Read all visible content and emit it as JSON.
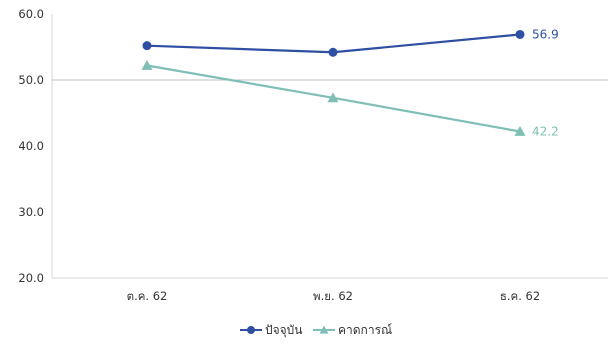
{
  "chart_data": {
    "type": "line",
    "categories": [
      "ต.ค. 62",
      "พ.ย. 62",
      "ธ.ค. 62"
    ],
    "series": [
      {
        "name": "ปัจจุบัน",
        "values": [
          55.2,
          54.2,
          56.9
        ],
        "color": "#2e4fa3",
        "marker": "circle",
        "label_last": "56.9"
      },
      {
        "name": "คาดการณ์",
        "values": [
          52.2,
          47.3,
          42.2
        ],
        "color": "#7fbfb6",
        "marker": "triangle",
        "label_last": "42.2"
      }
    ],
    "y_ticks": [
      "20.0",
      "30.0",
      "40.0",
      "50.0",
      "60.0"
    ],
    "ylim": [
      20,
      60
    ],
    "reference_line": 50,
    "grid": false,
    "legend_position": "bottom"
  }
}
